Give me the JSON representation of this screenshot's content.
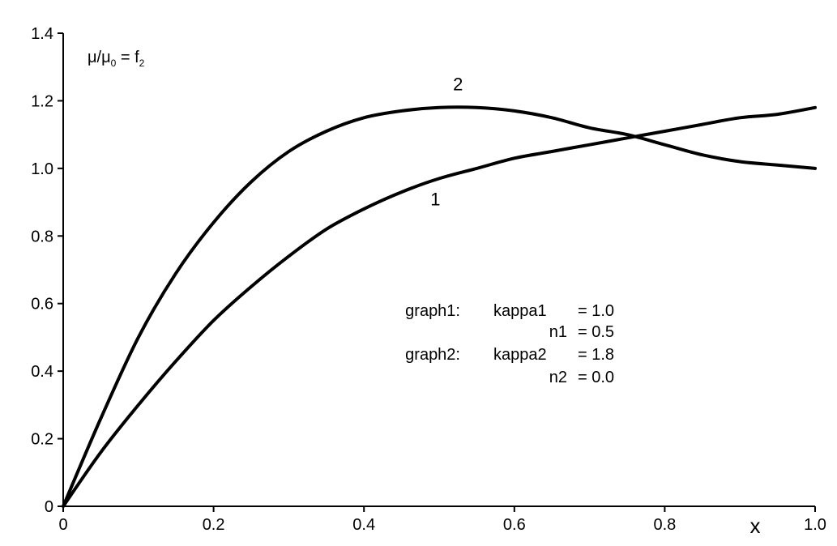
{
  "chart_data": {
    "type": "line",
    "title": "",
    "xlabel": "x",
    "ylabel": "",
    "xlim": [
      0,
      1.0
    ],
    "ylim": [
      0,
      1.4
    ],
    "grid": false,
    "x_ticks": [
      0,
      0.2,
      0.4,
      0.6,
      0.8,
      1.0
    ],
    "x_tick_labels": [
      "0",
      "0.2",
      "0.4",
      "0.6",
      "0.8",
      "1.0"
    ],
    "y_ticks": [
      0,
      0.2,
      0.4,
      0.6,
      0.8,
      1.0,
      1.2,
      1.4
    ],
    "y_tick_labels": [
      "0",
      "0.2",
      "0.4",
      "0.6",
      "0.8",
      "1.0",
      "1.2",
      "1.4"
    ],
    "annotation": {
      "main": "μ/μ",
      "sub1": "0",
      "mid": " = f",
      "sub2": "2"
    },
    "series": [
      {
        "name": "1",
        "x": [
          0,
          0.05,
          0.1,
          0.15,
          0.2,
          0.25,
          0.3,
          0.35,
          0.4,
          0.45,
          0.5,
          0.55,
          0.6,
          0.65,
          0.7,
          0.75,
          0.8,
          0.85,
          0.9,
          0.95,
          1.0
        ],
        "values": [
          0,
          0.16,
          0.3,
          0.43,
          0.55,
          0.65,
          0.74,
          0.82,
          0.88,
          0.93,
          0.97,
          1.0,
          1.03,
          1.05,
          1.07,
          1.09,
          1.11,
          1.13,
          1.15,
          1.16,
          1.18
        ]
      },
      {
        "name": "2",
        "x": [
          0,
          0.05,
          0.1,
          0.15,
          0.2,
          0.25,
          0.3,
          0.35,
          0.4,
          0.45,
          0.5,
          0.55,
          0.6,
          0.65,
          0.7,
          0.75,
          0.8,
          0.85,
          0.9,
          0.95,
          1.0
        ],
        "values": [
          0,
          0.26,
          0.5,
          0.69,
          0.84,
          0.96,
          1.05,
          1.11,
          1.15,
          1.17,
          1.18,
          1.18,
          1.17,
          1.15,
          1.12,
          1.1,
          1.07,
          1.04,
          1.02,
          1.01,
          1.0
        ]
      }
    ],
    "curve_labels": [
      {
        "text": "1",
        "x": 0.495,
        "y": 0.91
      },
      {
        "text": "2",
        "x": 0.525,
        "y": 1.25
      }
    ],
    "parameters": [
      {
        "graph": "graph1:",
        "name": "kappa1",
        "value": "= 1.0"
      },
      {
        "graph": "",
        "name": "n1",
        "value": "= 0.5"
      },
      {
        "graph": "graph2:",
        "name": "kappa2",
        "value": "= 1.8"
      },
      {
        "graph": "",
        "name": "n2",
        "value": "= 0.0"
      }
    ]
  }
}
